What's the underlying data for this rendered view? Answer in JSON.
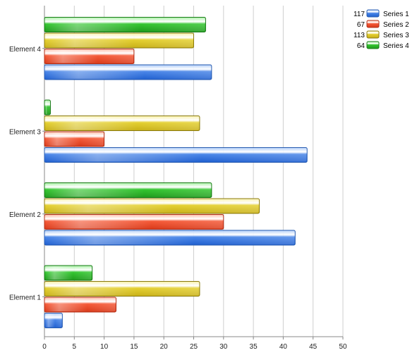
{
  "chart_data": {
    "type": "bar",
    "orientation": "horizontal",
    "categories": [
      "Element 1",
      "Element 2",
      "Element 3",
      "Element 4"
    ],
    "series": [
      {
        "name": "Series 1",
        "values": [
          3,
          42,
          44,
          28
        ],
        "total": 117
      },
      {
        "name": "Series 2",
        "values": [
          12,
          30,
          10,
          15
        ],
        "total": 67
      },
      {
        "name": "Series 3",
        "values": [
          26,
          36,
          26,
          25
        ],
        "total": 113
      },
      {
        "name": "Series 4",
        "values": [
          8,
          28,
          1,
          27
        ],
        "total": 64
      }
    ],
    "xlim": [
      0,
      50
    ],
    "xticks": [
      0,
      5,
      10,
      15,
      20,
      25,
      30,
      35,
      40,
      45,
      50
    ],
    "grid": true,
    "legend_position": "top-right",
    "colors": {
      "Series 1": {
        "top": "#a8c8f8",
        "mid": "#4a86e8",
        "bottom": "#1f5fcf",
        "stroke": "#2a5db0"
      },
      "Series 2": {
        "top": "#ffb49e",
        "mid": "#f55a38",
        "bottom": "#d83a1a",
        "stroke": "#b0301a"
      },
      "Series 3": {
        "top": "#f8f0a0",
        "mid": "#e4d030",
        "bottom": "#c8b018",
        "stroke": "#8a7a10"
      },
      "Series 4": {
        "top": "#9ef09a",
        "mid": "#34c630",
        "bottom": "#1f9a1c",
        "stroke": "#1a7a18"
      }
    }
  }
}
